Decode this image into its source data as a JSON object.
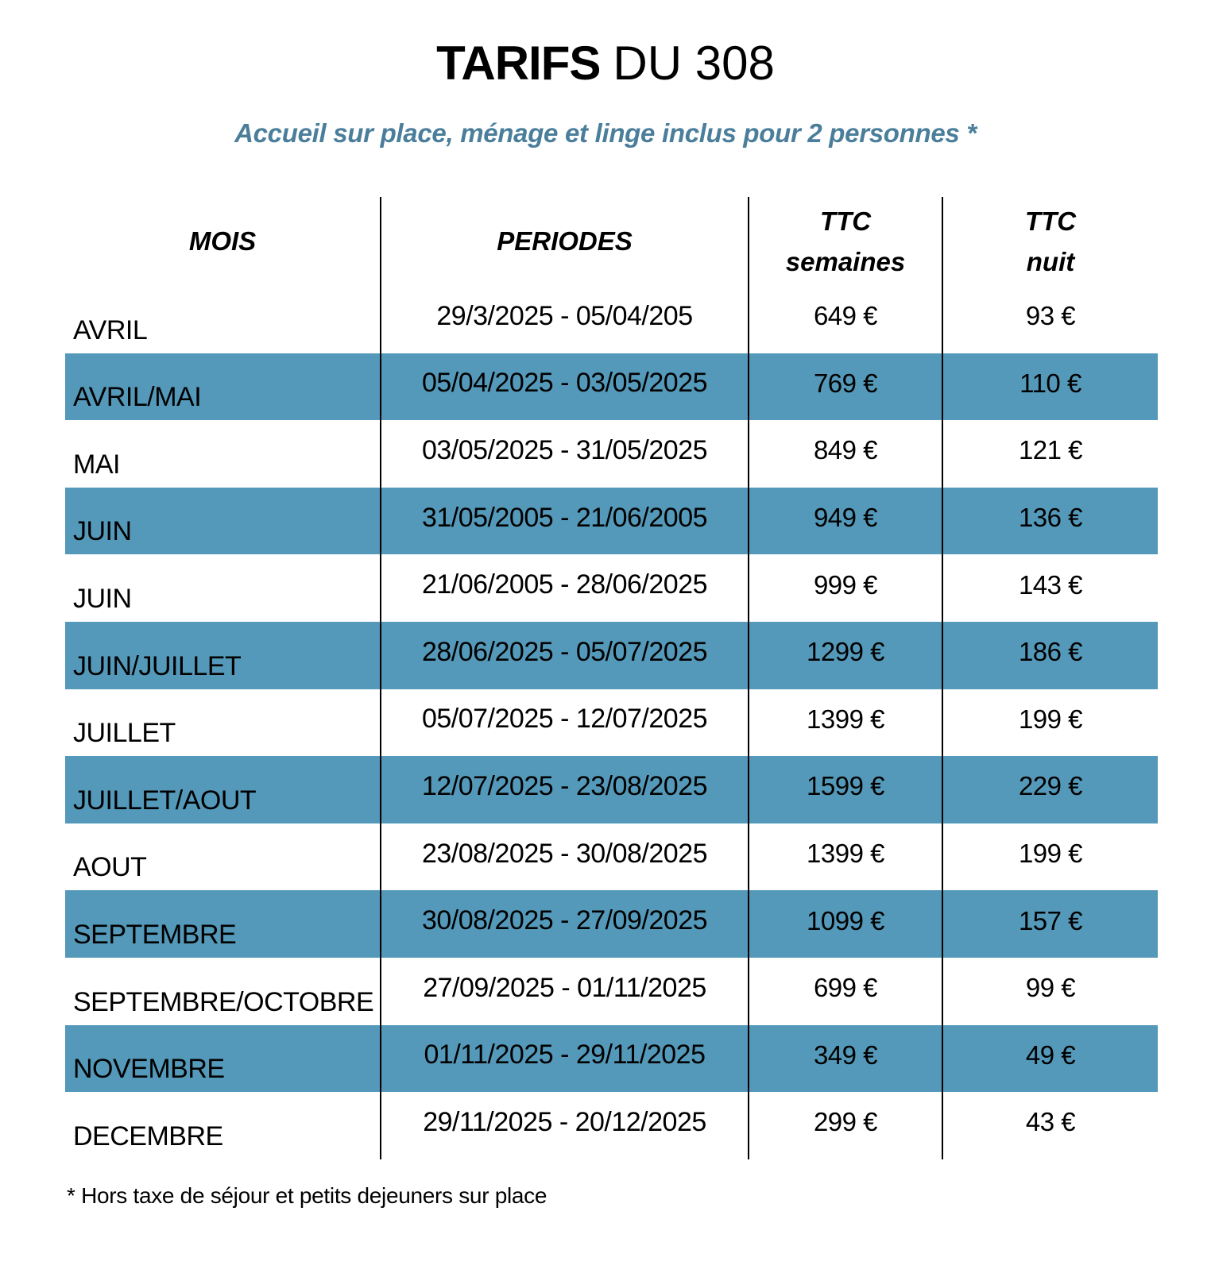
{
  "page": {
    "title_main": "TARIFS",
    "title_suffix": "DU 308",
    "subtitle": "Accueil sur place, ménage et linge inclus pour 2 personnes *",
    "footnote": "* Hors taxe de séjour et petits dejeuners sur place"
  },
  "colors": {
    "highlight_row": "#5499B9",
    "subtitle_text": "#4A7E9B",
    "text": "#000000",
    "divider": "#000000"
  },
  "table": {
    "headers": [
      "MOIS",
      "PERIODES",
      "TTC semaines",
      "TTC nuit"
    ],
    "rows": [
      {
        "month": "AVRIL",
        "period": "29/3/2025 - 05/04/205",
        "week_price": "649 €",
        "night_price": "93 €",
        "highlighted": false
      },
      {
        "month": "AVRIL/MAI",
        "period": "05/04/2025 - 03/05/2025",
        "week_price": "769 €",
        "night_price": "110 €",
        "highlighted": true
      },
      {
        "month": "MAI",
        "period": "03/05/2025 - 31/05/2025",
        "week_price": "849 €",
        "night_price": "121 €",
        "highlighted": false
      },
      {
        "month": "JUIN",
        "period": "31/05/2005 - 21/06/2005",
        "week_price": "949 €",
        "night_price": "136 €",
        "highlighted": true
      },
      {
        "month": "JUIN",
        "period": "21/06/2005 - 28/06/2025",
        "week_price": "999 €",
        "night_price": "143 €",
        "highlighted": false
      },
      {
        "month": "JUIN/JUILLET",
        "period": "28/06/2025 - 05/07/2025",
        "week_price": "1299 €",
        "night_price": "186 €",
        "highlighted": true
      },
      {
        "month": "JUILLET",
        "period": "05/07/2025 - 12/07/2025",
        "week_price": "1399 €",
        "night_price": "199 €",
        "highlighted": false
      },
      {
        "month": "JUILLET/AOUT",
        "period": "12/07/2025 - 23/08/2025",
        "week_price": "1599 €",
        "night_price": "229 €",
        "highlighted": true
      },
      {
        "month": "AOUT",
        "period": "23/08/2025 - 30/08/2025",
        "week_price": "1399 €",
        "night_price": "199 €",
        "highlighted": false
      },
      {
        "month": "SEPTEMBRE",
        "period": "30/08/2025 - 27/09/2025",
        "week_price": "1099 €",
        "night_price": "157 €",
        "highlighted": true
      },
      {
        "month": "SEPTEMBRE/OCTOBRE",
        "period": "27/09/2025 - 01/11/2025",
        "week_price": "699 €",
        "night_price": "99 €",
        "highlighted": false
      },
      {
        "month": "NOVEMBRE",
        "period": "01/11/2025 - 29/11/2025",
        "week_price": "349 €",
        "night_price": "49 €",
        "highlighted": true
      },
      {
        "month": "DECEMBRE",
        "period": "29/11/2025 - 20/12/2025",
        "week_price": "299 €",
        "night_price": "43 €",
        "highlighted": false
      }
    ]
  }
}
